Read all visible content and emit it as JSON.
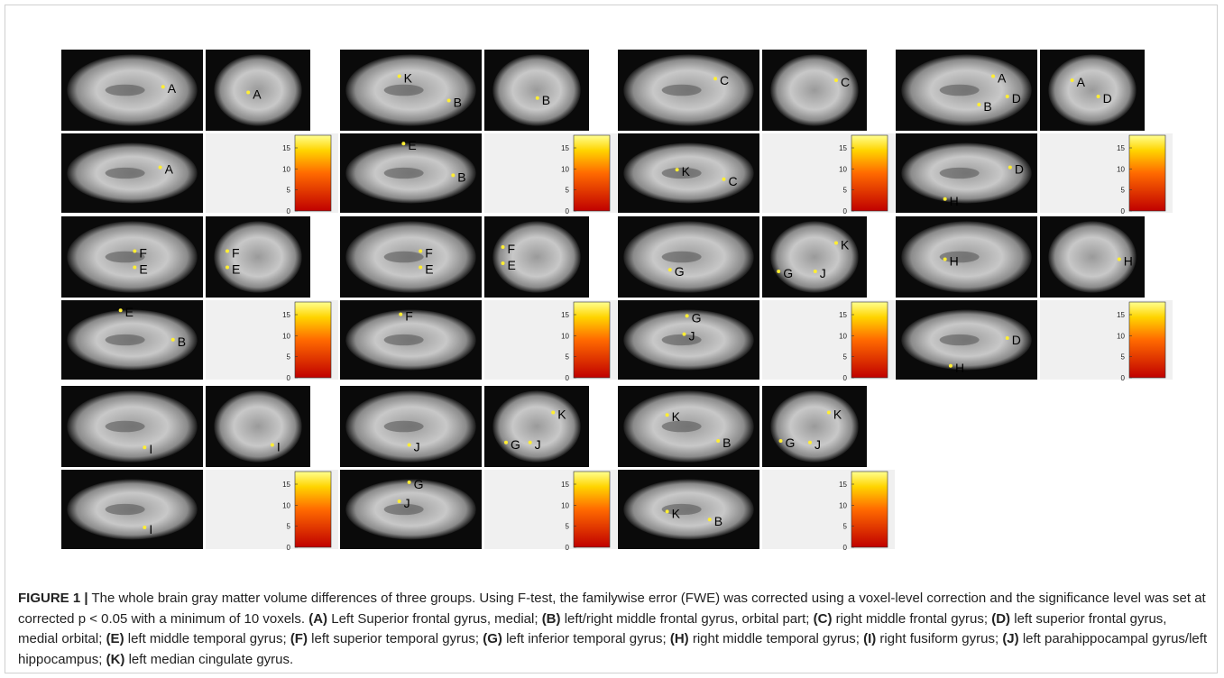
{
  "figure": {
    "colorbar": {
      "vlim": [
        0,
        18
      ],
      "ticks": [
        0,
        5,
        10,
        15
      ]
    },
    "panels": [
      {
        "sagittal": [
          "A"
        ],
        "coronal": [
          "A"
        ],
        "axial": [
          "A"
        ]
      },
      {
        "sagittal": [
          "K",
          "B"
        ],
        "coronal": [
          "B"
        ],
        "axial": [
          "E",
          "B"
        ]
      },
      {
        "sagittal": [
          "C"
        ],
        "coronal": [
          "C"
        ],
        "axial": [
          "K",
          "C"
        ]
      },
      {
        "sagittal": [
          "A",
          "B",
          "D"
        ],
        "coronal": [
          "A",
          "D"
        ],
        "axial": [
          "D",
          "H"
        ]
      },
      {
        "sagittal": [
          "F",
          "E"
        ],
        "coronal": [
          "F",
          "E"
        ],
        "axial": [
          "E",
          "B"
        ]
      },
      {
        "sagittal": [
          "F",
          "E"
        ],
        "coronal": [
          "F",
          "E"
        ],
        "axial": [
          "F"
        ]
      },
      {
        "sagittal": [
          "G"
        ],
        "coronal": [
          "K",
          "G",
          "J"
        ],
        "axial": [
          "G",
          "J"
        ]
      },
      {
        "sagittal": [
          "H"
        ],
        "coronal": [
          "H"
        ],
        "axial": [
          "D",
          "H"
        ]
      },
      {
        "sagittal": [
          "I"
        ],
        "coronal": [
          "I"
        ],
        "axial": [
          "I"
        ]
      },
      {
        "sagittal": [
          "J"
        ],
        "coronal": [
          "K",
          "G",
          "J"
        ],
        "axial": [
          "G",
          "J"
        ]
      },
      {
        "sagittal": [
          "K",
          "B"
        ],
        "coronal": [
          "K",
          "G",
          "J"
        ],
        "axial": [
          "K",
          "B"
        ]
      }
    ],
    "caption": {
      "label": "FIGURE 1 |",
      "text": "The whole brain gray matter volume differences of three groups. Using F-test, the familywise error (FWE) was corrected using a voxel-level correction and the significance level was set at corrected p < 0.05 with a minimum of 10 voxels.",
      "items": [
        {
          "key": "(A)",
          "text": "Left Superior frontal gyrus, medial;"
        },
        {
          "key": "(B)",
          "text": "left/right middle frontal gyrus, orbital part;"
        },
        {
          "key": "(C)",
          "text": "right middle frontal gyrus;"
        },
        {
          "key": "(D)",
          "text": "left superior frontal gyrus, medial orbital;"
        },
        {
          "key": "(E)",
          "text": "left middle temporal gyrus;"
        },
        {
          "key": "(F)",
          "text": "left superior temporal gyrus;"
        },
        {
          "key": "(G)",
          "text": "left inferior temporal gyrus;"
        },
        {
          "key": "(H)",
          "text": "right middle temporal gyrus;"
        },
        {
          "key": "(I)",
          "text": "right fusiform gyrus;"
        },
        {
          "key": "(J)",
          "text": "left parahippocampal gyrus/left hippocampus;"
        },
        {
          "key": "(K)",
          "text": "left median cingulate gyrus."
        }
      ]
    }
  }
}
